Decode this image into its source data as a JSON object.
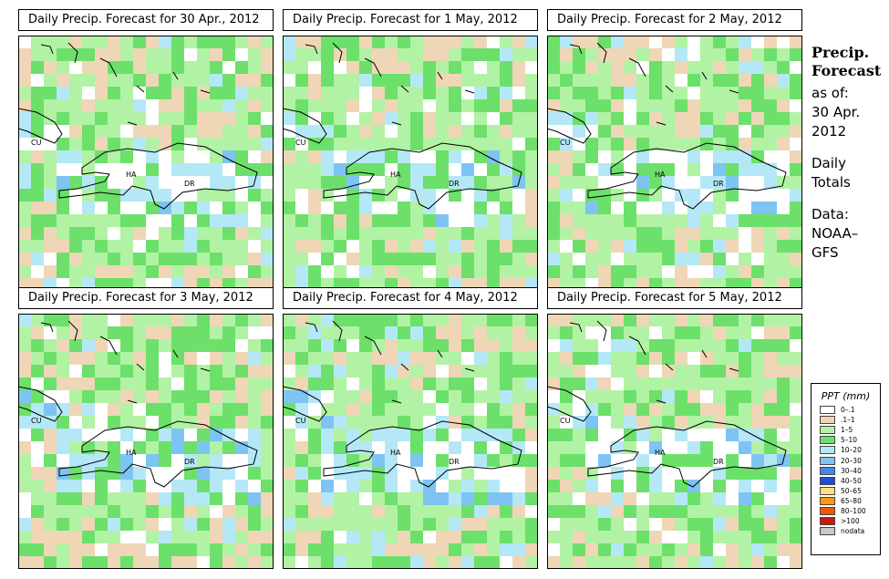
{
  "panels": [
    {
      "title": "Daily Precip. Forecast for  30 Apr., 2012",
      "seed": 11
    },
    {
      "title": "Daily Precip. Forecast for  1 May, 2012",
      "seed": 23
    },
    {
      "title": "Daily Precip. Forecast for  2 May, 2012",
      "seed": 37
    },
    {
      "title": "Daily Precip. Forecast for  3 May, 2012",
      "seed": 41
    },
    {
      "title": "Daily Precip. Forecast for  4 May, 2012",
      "seed": 53
    },
    {
      "title": "Daily Precip. Forecast for  5 May, 2012",
      "seed": 67
    }
  ],
  "map_labels": {
    "cuba": "CU",
    "haiti": "HA",
    "dominican_republic": "DR"
  },
  "sidebar": {
    "title_line1": "Precip.",
    "title_line2": "Forecast",
    "asof_line1": "as of:",
    "asof_line2": "30 Apr.",
    "asof_line3": "2012",
    "totals_line1": "Daily",
    "totals_line2": "Totals",
    "source_line1": "Data:",
    "source_line2": "NOAA–",
    "source_line3": "GFS"
  },
  "legend": {
    "title": "PPT (mm)",
    "items": [
      {
        "label": "0–.1",
        "color": "#ffffff"
      },
      {
        "label": ".1–1",
        "color": "#efd6b6"
      },
      {
        "label": "1–5",
        "color": "#b2f2a4"
      },
      {
        "label": "5–10",
        "color": "#6ce06a"
      },
      {
        "label": "10–20",
        "color": "#b4e8f6"
      },
      {
        "label": "20–30",
        "color": "#7ec4f2"
      },
      {
        "label": "30–40",
        "color": "#3f8ae8"
      },
      {
        "label": "40–50",
        "color": "#1c4fd6"
      },
      {
        "label": "50–65",
        "color": "#fde07a"
      },
      {
        "label": "65–80",
        "color": "#fb9b0c"
      },
      {
        "label": "80–100",
        "color": "#f05808"
      },
      {
        "label": ">100",
        "color": "#c81a0c"
      },
      {
        "label": "nodata",
        "color": "#c8c8c8"
      }
    ]
  },
  "coastline_color": "#000000"
}
